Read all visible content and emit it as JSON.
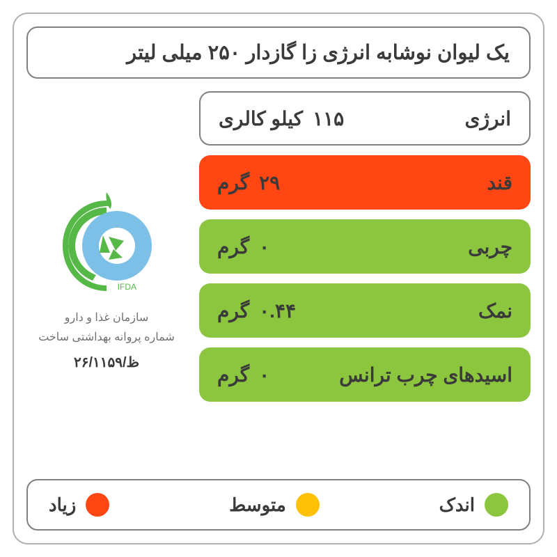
{
  "title": "یک لیوان نوشابه انرژی زا گازدار ۲۵۰ میلی لیتر",
  "colors": {
    "border_outer": "#b0b0b0",
    "border_inner": "#808080",
    "text_dark": "#3a3a3a",
    "text_gray": "#707070",
    "low": "#8cc63f",
    "medium": "#ffc107",
    "high": "#ff4613",
    "logo_green": "#56b947",
    "logo_blue": "#7cc0e8"
  },
  "energy": {
    "label": "انرژی",
    "value": "۱۱۵",
    "unit": "کیلو کالری"
  },
  "rows": [
    {
      "label": "قند",
      "value": "۲۹",
      "unit": "گرم",
      "level": "high"
    },
    {
      "label": "چربی",
      "value": "۰",
      "unit": "گرم",
      "level": "low"
    },
    {
      "label": "نمک",
      "value": "۰.۴۴",
      "unit": "گرم",
      "level": "low"
    },
    {
      "label": "اسیدهای چرب ترانس",
      "value": "۰",
      "unit": "گرم",
      "level": "low"
    }
  ],
  "org": {
    "acronym": "IFDA",
    "name": "سازمان غذا و دارو",
    "license_label": "شماره پروانه بهداشتی ساخت",
    "license_number": "۲۶/ظ/۱۱۵۹"
  },
  "legend": {
    "low": "اندک",
    "medium": "متوسط",
    "high": "زیاد"
  }
}
